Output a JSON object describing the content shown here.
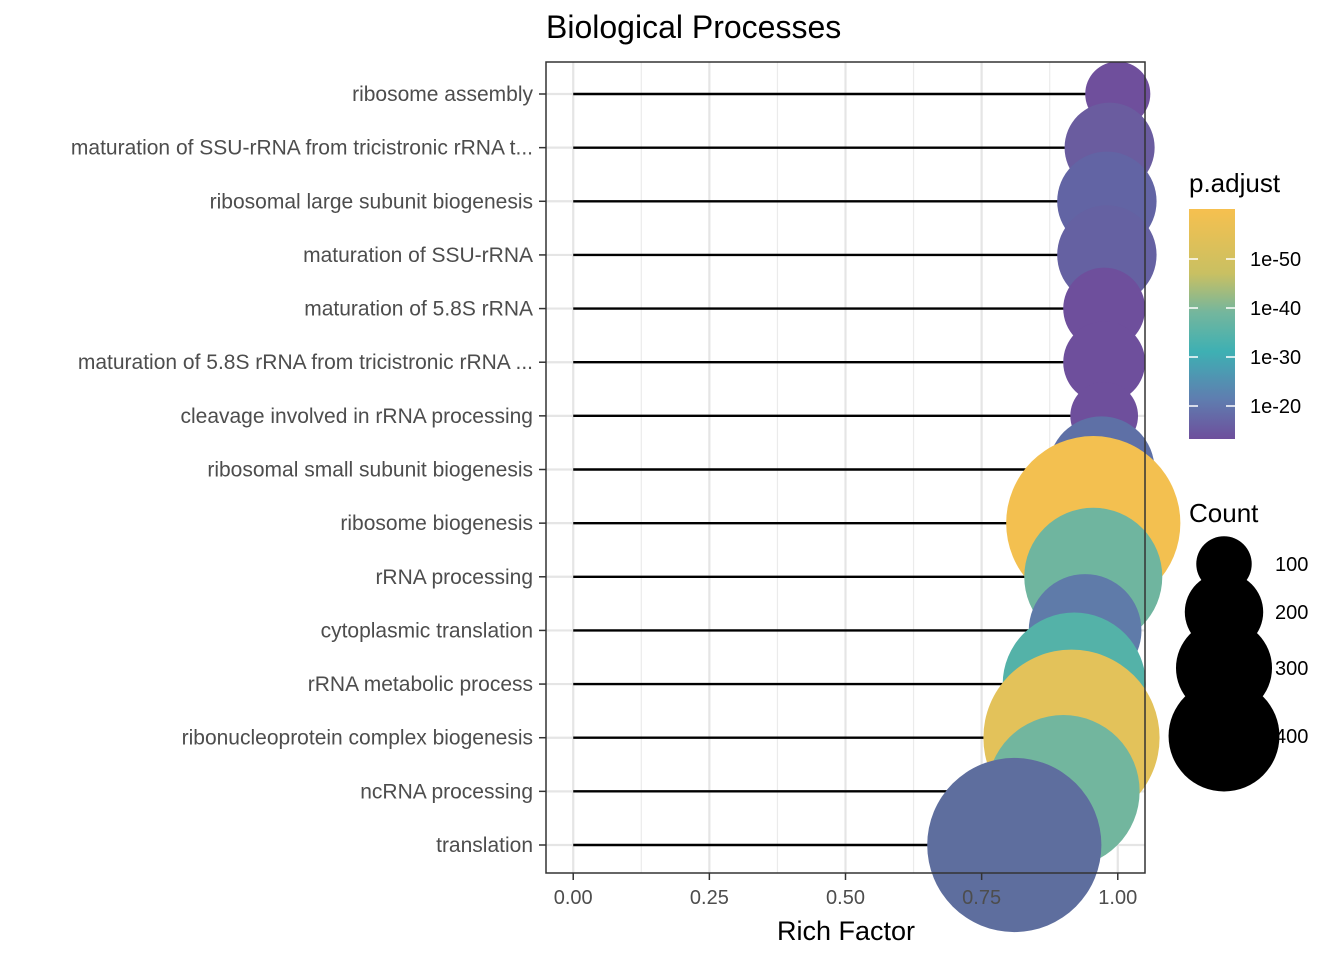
{
  "chart_data": {
    "type": "lollipop",
    "title": "Biological Processes",
    "xlabel": "Rich Factor",
    "ylabel": "",
    "xlim": [
      -0.05,
      1.05
    ],
    "x_ticks": [
      "0.00",
      "0.25",
      "0.50",
      "0.75",
      "1.00"
    ],
    "x_tick_values": [
      0,
      0.25,
      0.5,
      0.75,
      1.0
    ],
    "grid": true,
    "color_legend": {
      "title": "p.adjust",
      "labels": [
        "1e-50",
        "1e-40",
        "1e-30",
        "1e-20"
      ],
      "colors_top_to_bottom": [
        "#f6c04f",
        "#a8c06f",
        "#3eb0b3",
        "#5e7fb0",
        "#6e4f9c"
      ]
    },
    "size_legend": {
      "title": "Count",
      "labels": [
        "100",
        "200",
        "300",
        "400"
      ],
      "values": [
        100,
        200,
        300,
        400
      ]
    },
    "terms": [
      {
        "label": "ribosome assembly",
        "x": 1.0,
        "count": 60,
        "color": "#6f4f9c"
      },
      {
        "label": "maturation of SSU-rRNA from tricistronic rRNA t...",
        "x": 0.985,
        "count": 115,
        "color": "#6a5c9f"
      },
      {
        "label": "ribosomal large subunit biogenesis",
        "x": 0.98,
        "count": 140,
        "color": "#6264a4"
      },
      {
        "label": "maturation of SSU-rRNA",
        "x": 0.98,
        "count": 140,
        "color": "#6561a2"
      },
      {
        "label": "maturation of 5.8S rRNA",
        "x": 0.975,
        "count": 95,
        "color": "#6e4f9c"
      },
      {
        "label": "maturation of 5.8S rRNA from tricistronic rRNA ...",
        "x": 0.975,
        "count": 95,
        "color": "#6e4f9c"
      },
      {
        "label": "cleavage involved in rRNA processing",
        "x": 0.975,
        "count": 65,
        "color": "#6e4f9c"
      },
      {
        "label": "ribosomal small subunit biogenesis",
        "x": 0.97,
        "count": 160,
        "color": "#5e70a6"
      },
      {
        "label": "ribosome biogenesis",
        "x": 0.955,
        "count": 430,
        "color": "#f3c050"
      },
      {
        "label": "rRNA processing",
        "x": 0.955,
        "count": 270,
        "color": "#6fb59f"
      },
      {
        "label": "cytoplasmic translation",
        "x": 0.94,
        "count": 180,
        "color": "#5f7ba9"
      },
      {
        "label": "rRNA metabolic process",
        "x": 0.92,
        "count": 290,
        "color": "#54b2a8"
      },
      {
        "label": "ribonucleoprotein complex biogenesis",
        "x": 0.915,
        "count": 440,
        "color": "#e3c25a"
      },
      {
        "label": "ncRNA processing",
        "x": 0.9,
        "count": 330,
        "color": "#72b69e"
      },
      {
        "label": "translation",
        "x": 0.81,
        "count": 430,
        "color": "#5e6e9e"
      }
    ]
  }
}
